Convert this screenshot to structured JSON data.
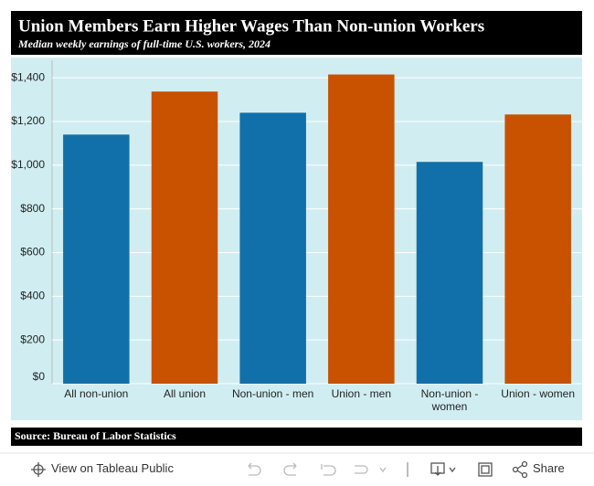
{
  "chart_data": {
    "type": "bar",
    "title": "Union Members Earn Higher Wages Than Non-union Workers",
    "subtitle": "Median weekly earnings of full-time U.S. workers, 2024",
    "source": "Source: Bureau of Labor Statistics",
    "categories": [
      "All non-union",
      "All union",
      "Non-union - men",
      "Union - men",
      "Non-union - women",
      "Union - women"
    ],
    "values": [
      1140,
      1337,
      1240,
      1415,
      1015,
      1232
    ],
    "colors": [
      "#1170aa",
      "#c85200",
      "#1170aa",
      "#c85200",
      "#1170aa",
      "#c85200"
    ],
    "ylim": [
      0,
      1480
    ],
    "yticks": [
      {
        "value": 0,
        "label": "$0"
      },
      {
        "value": 200,
        "label": "$200"
      },
      {
        "value": 400,
        "label": "$400"
      },
      {
        "value": 600,
        "label": "$600"
      },
      {
        "value": 800,
        "label": "$800"
      },
      {
        "value": 1000,
        "label": "$1,000"
      },
      {
        "value": 1200,
        "label": "$1,200"
      },
      {
        "value": 1400,
        "label": "$1,400"
      }
    ],
    "grid": true
  },
  "toolbar": {
    "view": "View on Tableau Public",
    "share": "Share"
  }
}
